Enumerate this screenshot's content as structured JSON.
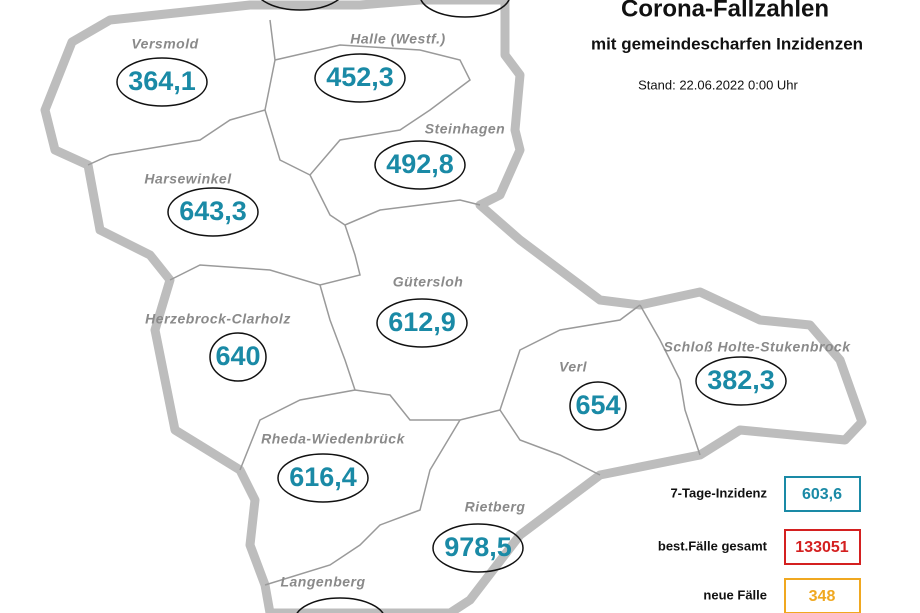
{
  "header": {
    "title": "Corona-Fallzahlen",
    "subtitle": "mit gemeindescharfen Inzidenzen",
    "stand": "Stand: 22.06.2022 0:00 Uhr"
  },
  "regions": [
    {
      "name": "Versmold",
      "value": "364,1"
    },
    {
      "name": "Halle (Westf.)",
      "value": "452,3"
    },
    {
      "name": "Steinhagen",
      "value": "492,8"
    },
    {
      "name": "Harsewinkel",
      "value": "643,3"
    },
    {
      "name": "Gütersloh",
      "value": "612,9"
    },
    {
      "name": "Herzebrock-Clarholz",
      "value": "640"
    },
    {
      "name": "Verl",
      "value": "654"
    },
    {
      "name": "Schloß Holte-Stukenbrock",
      "value": "382,3"
    },
    {
      "name": "Rheda-Wiedenbrück",
      "value": "616,4"
    },
    {
      "name": "Rietberg",
      "value": "978,5"
    },
    {
      "name": "Langenberg"
    }
  ],
  "legend": [
    {
      "label": "7-Tage-Inzidenz",
      "value": "603,6",
      "color": "#1a8aa6"
    },
    {
      "label": "best.Fälle gesamt",
      "value": "133051",
      "color": "#d42020"
    },
    {
      "label": "neue Fälle",
      "value": "348",
      "color": "#f0a820"
    }
  ]
}
